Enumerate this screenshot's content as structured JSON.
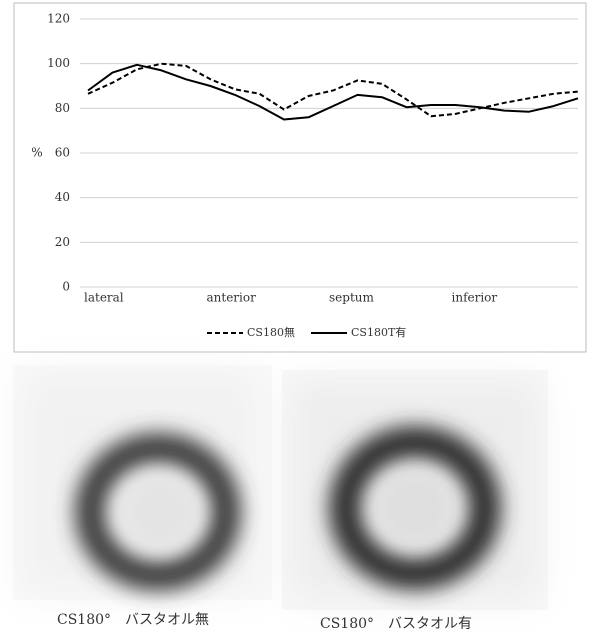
{
  "chart_data": {
    "type": "line",
    "y_label": "%",
    "categories": [
      "lateral",
      null,
      null,
      null,
      null,
      "anterior",
      null,
      null,
      null,
      null,
      "septum",
      null,
      null,
      null,
      null,
      "inferior",
      null,
      null,
      null,
      null,
      null
    ],
    "series": [
      {
        "name": "CS180無",
        "color": "#000000",
        "dash": true,
        "values": [
          86.5,
          91.5,
          97.5,
          100,
          99,
          93,
          88.5,
          86.5,
          79.5,
          85.5,
          88,
          92.5,
          91,
          84,
          76.5,
          77.5,
          80,
          82.5,
          84.5,
          86.5,
          87.5
        ]
      },
      {
        "name": "CS180T有",
        "color": "#000000",
        "dash": false,
        "values": [
          88,
          96,
          99.5,
          97,
          93,
          90,
          86,
          81,
          75,
          76,
          81,
          86,
          85,
          80.5,
          81.5,
          81.5,
          80.5,
          79,
          78.5,
          81,
          84.5
        ]
      }
    ],
    "ylim": [
      0,
      120
    ],
    "yticks": [
      0,
      20,
      40,
      60,
      80,
      100,
      120
    ],
    "grid": true,
    "legend": "bottom"
  },
  "images": [
    {
      "caption": "CS180°　バスタオル無"
    },
    {
      "caption": "CS180°　バスタオル有"
    }
  ]
}
